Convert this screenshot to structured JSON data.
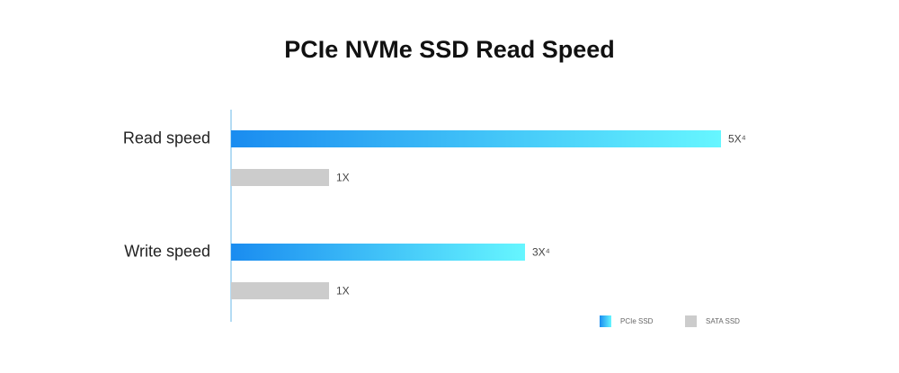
{
  "chart_data": {
    "type": "bar",
    "orientation": "horizontal",
    "title": "PCIe NVMe SSD Read Speed",
    "categories": [
      "Read speed",
      "Write speed"
    ],
    "series": [
      {
        "name": "PCIe SSD",
        "color": "#1a8cf0",
        "values": [
          5,
          3
        ],
        "value_labels": [
          "5X⁴",
          "3X⁴"
        ]
      },
      {
        "name": "SATA SSD",
        "color": "#cccccc",
        "values": [
          1,
          1
        ],
        "value_labels": [
          "1X",
          "1X"
        ]
      }
    ],
    "legend": "bottom-right"
  }
}
